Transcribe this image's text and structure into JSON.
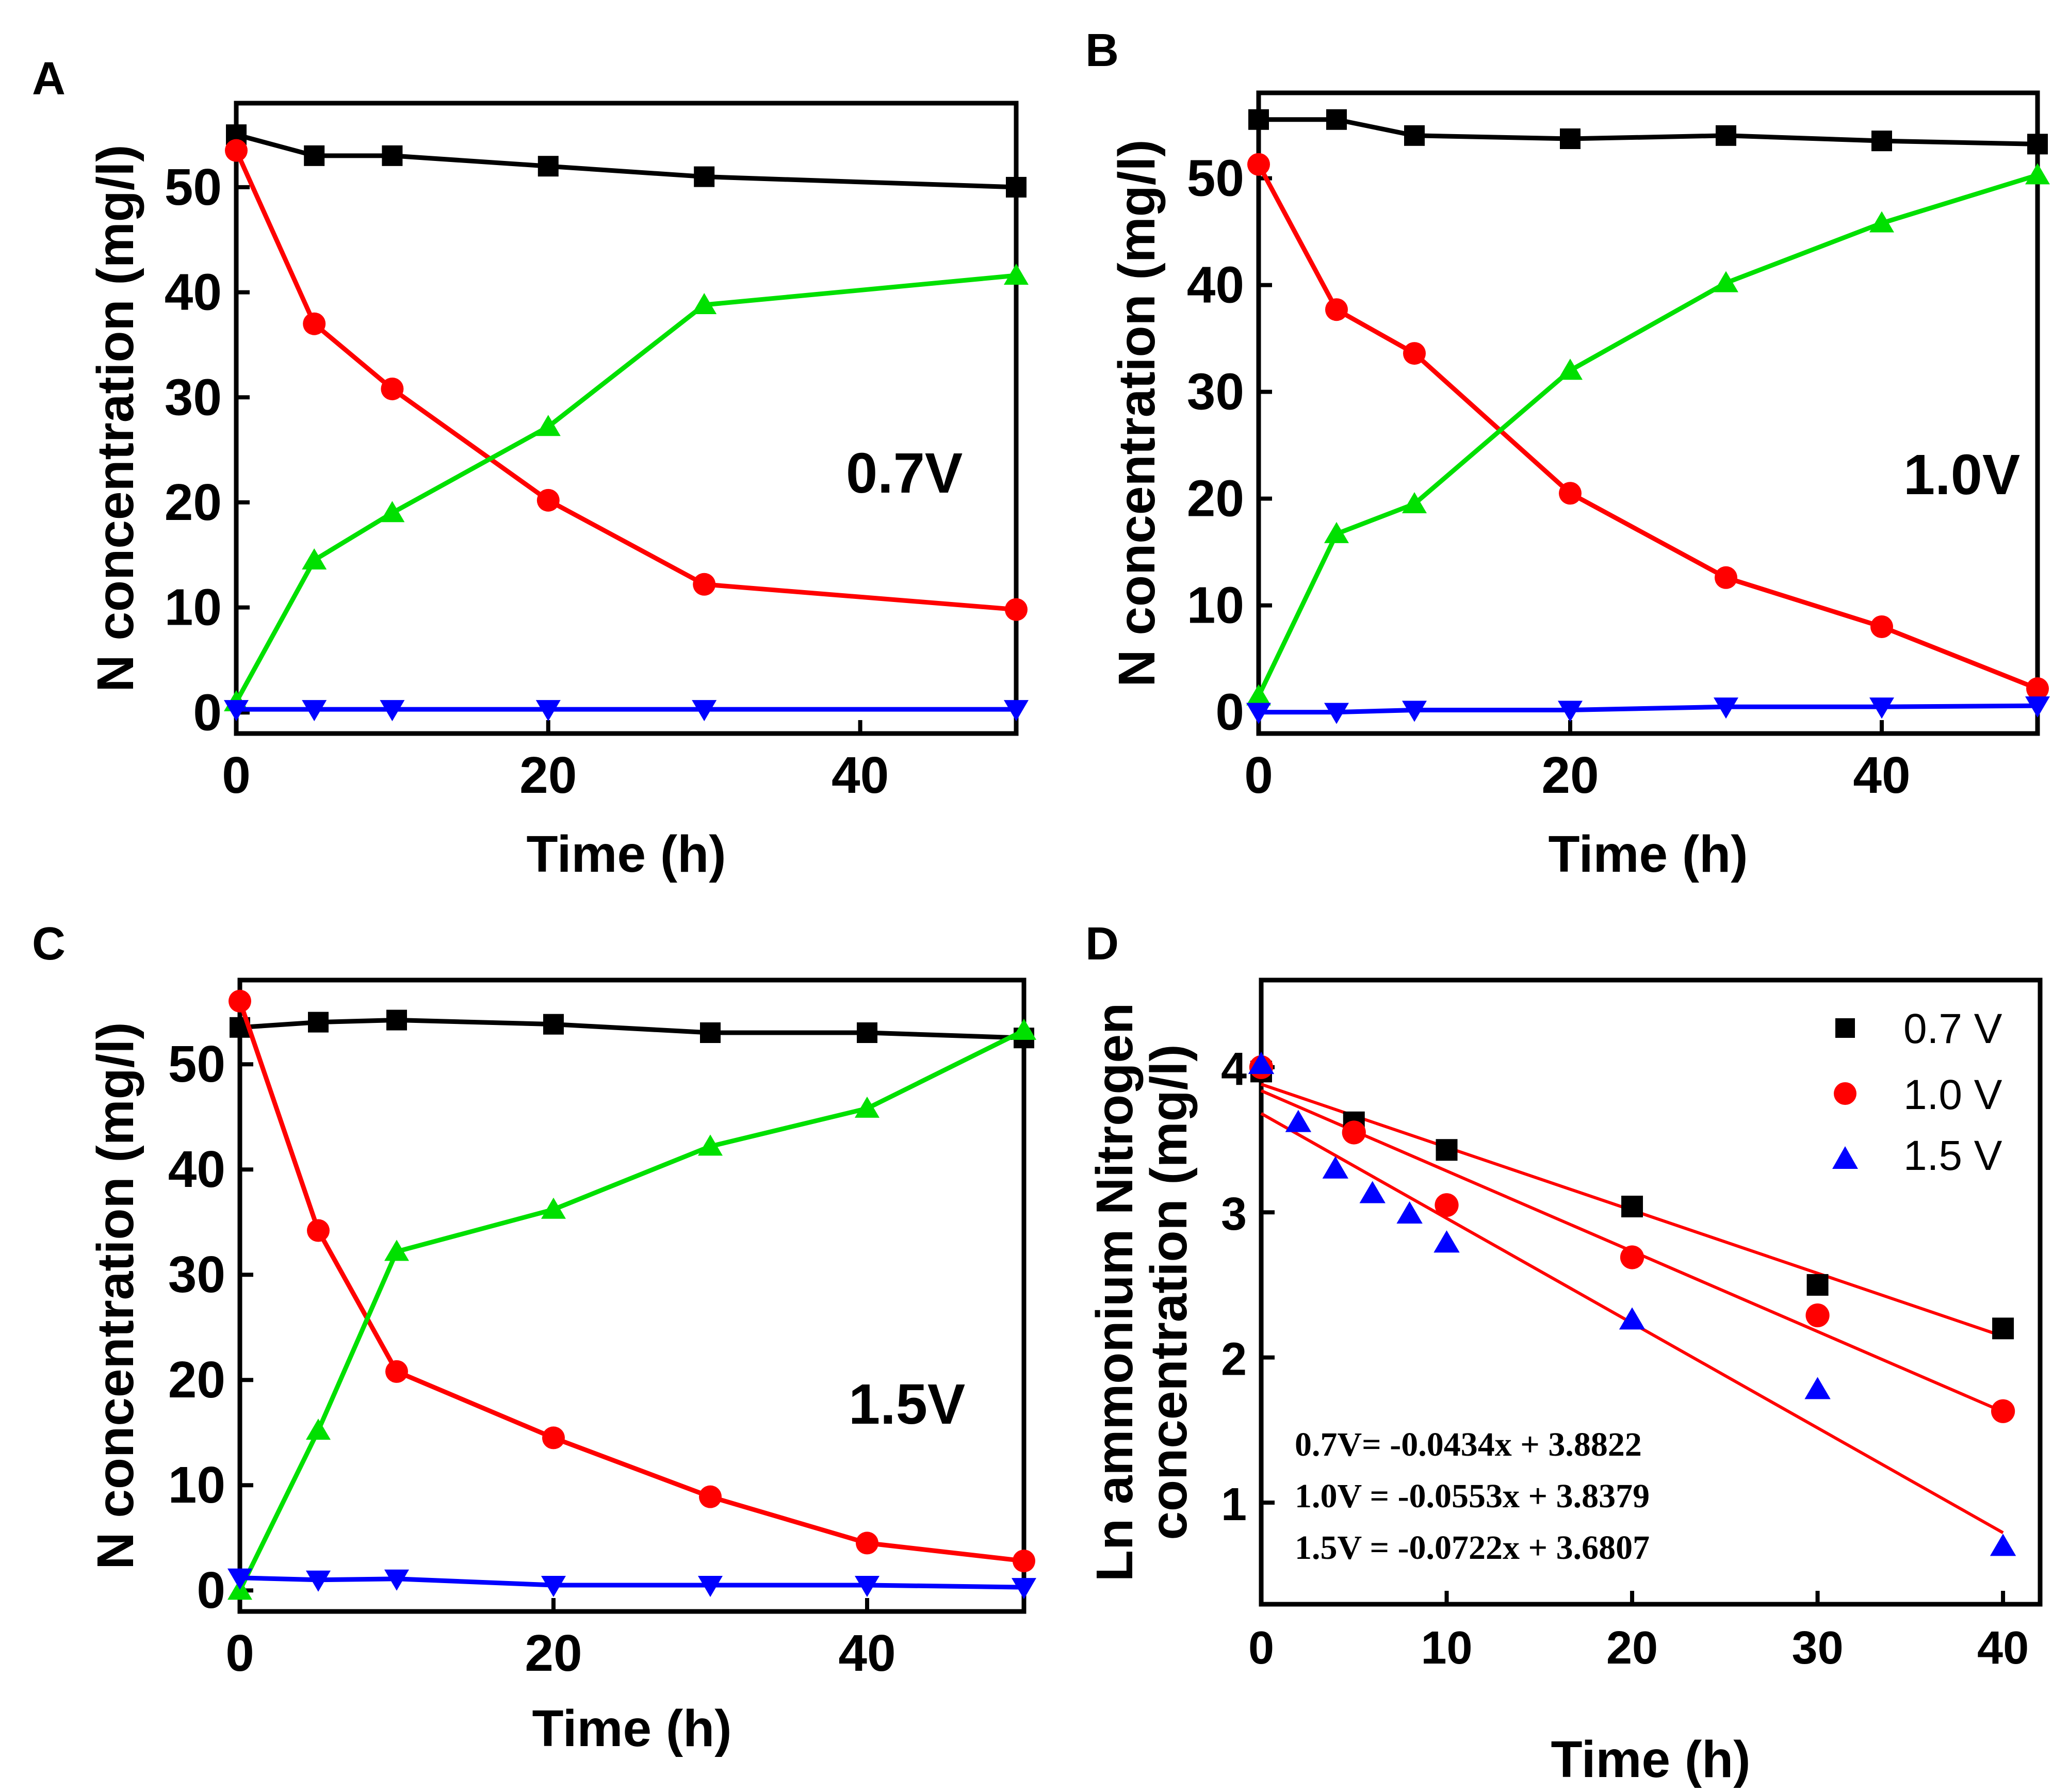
{
  "colors": {
    "black": "#000000",
    "red": "#ff0000",
    "green": "#00e000",
    "blue": "#0000ff",
    "fit": "#ff0000"
  },
  "chart_data": [
    {
      "panel": "A",
      "type": "line",
      "annotation": "0.7V",
      "xlabel": "Time (h)",
      "ylabel": "N concentration (mg/l)",
      "xlim": [
        0,
        50
      ],
      "ylim": [
        -2,
        58
      ],
      "xticks": [
        0,
        20,
        40
      ],
      "yticks": [
        0,
        10,
        20,
        30,
        40,
        50
      ],
      "x": [
        0,
        5,
        10,
        20,
        30,
        50
      ],
      "series": [
        {
          "name": "black squares",
          "marker": "square",
          "color": "black",
          "values": [
            55,
            53,
            53,
            52,
            51,
            50
          ]
        },
        {
          "name": "red circles",
          "marker": "circle",
          "color": "red",
          "values": [
            53.5,
            37,
            30.8,
            20.2,
            12.2,
            9.8
          ]
        },
        {
          "name": "green triangles",
          "marker": "triangle-up",
          "color": "green",
          "values": [
            1,
            14.5,
            19,
            27.2,
            38.8,
            41.6
          ]
        },
        {
          "name": "blue triangles",
          "marker": "triangle-down",
          "color": "blue",
          "values": [
            0.3,
            0.3,
            0.3,
            0.3,
            0.3,
            0.3
          ]
        }
      ]
    },
    {
      "panel": "B",
      "type": "line",
      "annotation": "1.0V",
      "xlabel": "Time (h)",
      "ylabel": "N concentration (mg/l)",
      "xlim": [
        0,
        50
      ],
      "ylim": [
        -2,
        58
      ],
      "xticks": [
        0,
        20,
        40
      ],
      "yticks": [
        0,
        10,
        20,
        30,
        40,
        50
      ],
      "x": [
        0,
        5,
        10,
        20,
        30,
        40,
        50
      ],
      "series": [
        {
          "name": "black squares",
          "marker": "square",
          "color": "black",
          "values": [
            55.5,
            55.5,
            54,
            53.7,
            54,
            53.5,
            53.2
          ]
        },
        {
          "name": "red circles",
          "marker": "circle",
          "color": "red",
          "values": [
            51.3,
            37.7,
            33.6,
            20.5,
            12.6,
            8,
            2.2
          ]
        },
        {
          "name": "green triangles",
          "marker": "triangle-up",
          "color": "green",
          "values": [
            1.5,
            16.7,
            19.5,
            32,
            40.2,
            45.8,
            50.3
          ]
        },
        {
          "name": "blue triangles",
          "marker": "triangle-down",
          "color": "blue",
          "values": [
            0,
            0,
            0.2,
            0.2,
            0.5,
            0.5,
            0.6
          ]
        }
      ]
    },
    {
      "panel": "C",
      "type": "line",
      "annotation": "1.5V",
      "xlabel": "Time (h)",
      "ylabel": "N concentration (mg/l)",
      "xlim": [
        0,
        50
      ],
      "ylim": [
        -2,
        58
      ],
      "xticks": [
        0,
        20,
        40
      ],
      "yticks": [
        0,
        10,
        20,
        30,
        40,
        50
      ],
      "x": [
        0,
        5,
        10,
        20,
        30,
        40,
        50
      ],
      "series": [
        {
          "name": "black squares",
          "marker": "square",
          "color": "black",
          "values": [
            53.5,
            54,
            54.2,
            53.8,
            53,
            53,
            52.5
          ]
        },
        {
          "name": "red circles",
          "marker": "circle",
          "color": "red",
          "values": [
            56,
            34.2,
            20.8,
            14.5,
            8.9,
            4.5,
            2.8
          ]
        },
        {
          "name": "green triangles",
          "marker": "triangle-up",
          "color": "green",
          "values": [
            0,
            15.2,
            32.2,
            36.2,
            42.2,
            45.8,
            53.2
          ]
        },
        {
          "name": "blue triangles",
          "marker": "triangle-down",
          "color": "blue",
          "values": [
            1.2,
            1,
            1.1,
            0.5,
            0.5,
            0.5,
            0.3
          ]
        }
      ]
    },
    {
      "panel": "D",
      "type": "scatter",
      "xlabel": "Time (h)",
      "ylabel_line1": "Ln ammonium Nitrogen",
      "ylabel_line2": "concentration (mg/l)",
      "xlim": [
        0,
        42
      ],
      "ylim": [
        0.3,
        4.6
      ],
      "xticks": [
        0,
        10,
        20,
        30,
        40
      ],
      "yticks": [
        1,
        2,
        3,
        4
      ],
      "legend_position": "top-right",
      "series": [
        {
          "name": "0.7 V",
          "marker": "square",
          "color": "black",
          "x": [
            0,
            5,
            10,
            20,
            30,
            40
          ],
          "values": [
            3.97,
            3.62,
            3.43,
            3.04,
            2.5,
            2.2
          ]
        },
        {
          "name": "1.0 V",
          "marker": "circle",
          "color": "red",
          "x": [
            0,
            5,
            10,
            20,
            30,
            40
          ],
          "values": [
            4.0,
            3.55,
            3.05,
            2.69,
            2.29,
            1.63
          ]
        },
        {
          "name": "1.5 V",
          "marker": "triangle-up",
          "color": "blue",
          "x": [
            0,
            2,
            4,
            6,
            8,
            10,
            20,
            30,
            40
          ],
          "values": [
            4.02,
            3.62,
            3.3,
            3.13,
            2.99,
            2.79,
            2.26,
            1.78,
            0.7
          ]
        }
      ],
      "fits": [
        {
          "slope": -0.0434,
          "intercept": 3.8822
        },
        {
          "slope": -0.0553,
          "intercept": 3.8379
        },
        {
          "slope": -0.0722,
          "intercept": 3.6807
        }
      ],
      "equations": [
        "0.7V= -0.0434x + 3.8822",
        "1.0V = -0.0553x + 3.8379",
        "1.5V = -0.0722x + 3.6807"
      ]
    }
  ],
  "legend": {
    "items": [
      "0.7 V",
      "1.0 V",
      "1.5 V"
    ]
  }
}
